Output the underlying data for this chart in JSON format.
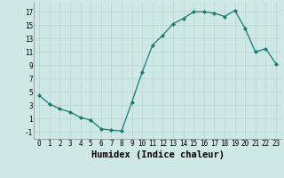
{
  "x": [
    0,
    1,
    2,
    3,
    4,
    5,
    6,
    7,
    8,
    9,
    10,
    11,
    12,
    13,
    14,
    15,
    16,
    17,
    18,
    19,
    20,
    21,
    22,
    23
  ],
  "y": [
    4.5,
    3.2,
    2.5,
    2.0,
    1.2,
    0.8,
    -0.5,
    -0.7,
    -0.8,
    3.5,
    8.0,
    12.0,
    13.5,
    15.2,
    16.0,
    17.0,
    17.0,
    16.8,
    16.3,
    17.2,
    14.5,
    11.0,
    11.5,
    9.2
  ],
  "line_color": "#1a7a6e",
  "marker": "D",
  "marker_size": 2.0,
  "bg_color": "#cde8e5",
  "grid_color": "#b8d8d4",
  "xlabel": "Humidex (Indice chaleur)",
  "xlim": [
    -0.5,
    23.5
  ],
  "ylim": [
    -2.0,
    18.5
  ],
  "yticks": [
    -1,
    1,
    3,
    5,
    7,
    9,
    11,
    13,
    15,
    17
  ],
  "xticks": [
    0,
    1,
    2,
    3,
    4,
    5,
    6,
    7,
    8,
    9,
    10,
    11,
    12,
    13,
    14,
    15,
    16,
    17,
    18,
    19,
    20,
    21,
    22,
    23
  ],
  "tick_fontsize": 5.5,
  "xlabel_fontsize": 7.5
}
